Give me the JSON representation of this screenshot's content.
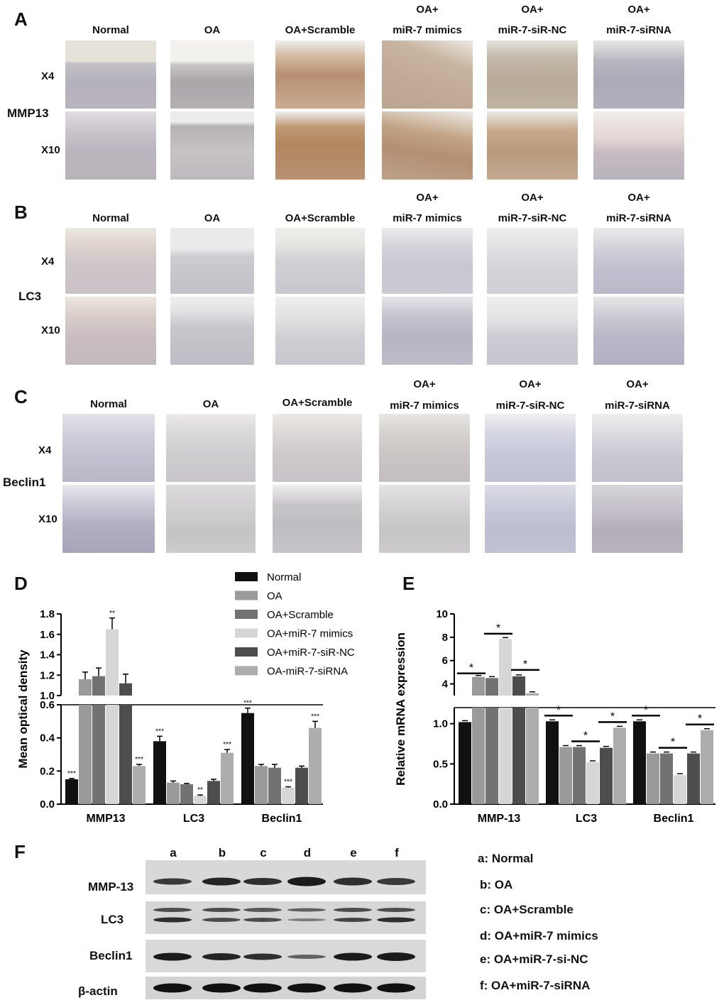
{
  "panels": {
    "A": {
      "letter": "A",
      "columns": [
        "Normal",
        "OA",
        "OA+Scramble",
        [
          "OA+",
          "miR-7 mimics"
        ],
        [
          "OA+",
          "miR-7-siR-NC"
        ],
        [
          "OA+",
          "miR-7-siRNA"
        ]
      ],
      "rows": [
        "X4",
        "X10"
      ],
      "stain": "MMP13"
    },
    "B": {
      "letter": "B",
      "columns": [
        "Normal",
        "OA",
        "OA+Scramble",
        [
          "OA+",
          "miR-7 mimics"
        ],
        [
          "OA+",
          "miR-7-siR-NC"
        ],
        [
          "OA+",
          "miR-7-siRNA"
        ]
      ],
      "rows": [
        "X4",
        "X10"
      ],
      "stain": "LC3"
    },
    "C": {
      "letter": "C",
      "columns": [
        "Normal",
        "OA",
        "OA+Scramble",
        [
          "OA+",
          "miR-7 mimics"
        ],
        [
          "OA+",
          "miR-7-siR-NC"
        ],
        [
          "OA+",
          "miR-7-siRNA"
        ]
      ],
      "rows": [
        "X4",
        "X10"
      ],
      "stain": "Beclin1"
    },
    "D": {
      "letter": "D"
    },
    "E": {
      "letter": "E"
    },
    "F": {
      "letter": "F"
    }
  },
  "colors": {
    "normal": "#111111",
    "oa": "#9a9a9a",
    "scramble": "#727272",
    "mimics": "#d6d6d6",
    "sirnc": "#4d4d4d",
    "sirna": "#adadad"
  },
  "chart_data": [
    {
      "type": "bar",
      "panel": "D",
      "ylabel": "Mean  optical density",
      "categories": [
        "MMP13",
        "LC3",
        "Beclin1"
      ],
      "y_ticks_lower": [
        "0.0",
        "0.2",
        "0.4",
        "0.6"
      ],
      "y_ticks_upper": [
        "1.0",
        "1.2",
        "1.4",
        "1.6",
        "1.8"
      ],
      "broken_axis": {
        "lower": [
          0,
          0.6
        ],
        "upper": [
          1.0,
          1.8
        ]
      },
      "series": [
        {
          "name": "Normal",
          "values": [
            0.15,
            0.38,
            0.55
          ],
          "errors": [
            0.005,
            0.03,
            0.03
          ],
          "sig": [
            "***",
            "***",
            "***"
          ]
        },
        {
          "name": "OA",
          "values": [
            1.16,
            0.13,
            0.23
          ],
          "errors": [
            0.07,
            0.01,
            0.01
          ],
          "sig": [
            "",
            "",
            ""
          ]
        },
        {
          "name": "OA+Scramble",
          "values": [
            1.19,
            0.12,
            0.22
          ],
          "errors": [
            0.08,
            0.005,
            0.02
          ],
          "sig": [
            "",
            "",
            ""
          ]
        },
        {
          "name": "OA+miR-7 mimics",
          "values": [
            1.65,
            0.05,
            0.1
          ],
          "errors": [
            0.11,
            0.005,
            0.005
          ],
          "sig": [
            "**",
            "**",
            "***"
          ]
        },
        {
          "name": "OA+miR-7-siR-NC",
          "values": [
            1.12,
            0.14,
            0.22
          ],
          "errors": [
            0.09,
            0.01,
            0.01
          ],
          "sig": [
            "",
            "",
            ""
          ]
        },
        {
          "name": "OA-miR-7-siRNA",
          "values": [
            0.23,
            0.31,
            0.46
          ],
          "errors": [
            0.01,
            0.02,
            0.04
          ],
          "sig": [
            "***",
            "***",
            "***"
          ]
        }
      ]
    },
    {
      "type": "bar",
      "panel": "E",
      "ylabel": "Relative mRNA expression",
      "categories": [
        "MMP-13",
        "LC3",
        "Beclin1"
      ],
      "y_ticks_lower": [
        "0.0",
        "0.5",
        "1.0"
      ],
      "y_ticks_upper": [
        "4",
        "6",
        "8",
        "10"
      ],
      "broken_axis": {
        "lower": [
          0,
          1.2
        ],
        "upper": [
          3,
          10
        ]
      },
      "series": [
        {
          "name": "Normal",
          "values": [
            1.02,
            1.03,
            1.03
          ]
        },
        {
          "name": "OA",
          "values": [
            4.6,
            0.71,
            0.63
          ]
        },
        {
          "name": "OA+Scramble",
          "values": [
            4.5,
            0.71,
            0.63
          ]
        },
        {
          "name": "OA+miR-7 mimics",
          "values": [
            7.85,
            0.52,
            0.36
          ]
        },
        {
          "name": "OA+miR-7-siR-NC",
          "values": [
            4.65,
            0.7,
            0.63
          ]
        },
        {
          "name": "OA-miR-7-siRNA",
          "values": [
            3.2,
            0.95,
            0.92
          ]
        }
      ],
      "significance": "*"
    }
  ],
  "blot": {
    "lanes": [
      "a",
      "b",
      "c",
      "d",
      "e",
      "f"
    ],
    "rows": [
      "MMP-13",
      "LC3",
      "Beclin1",
      "β-actin"
    ],
    "key": [
      "a: Normal",
      "b: OA",
      "c: OA+Scramble",
      "d: OA+miR-7 mimics",
      "e: OA+miR-7-si-NC",
      "f: OA+miR-7-siRNA"
    ]
  }
}
